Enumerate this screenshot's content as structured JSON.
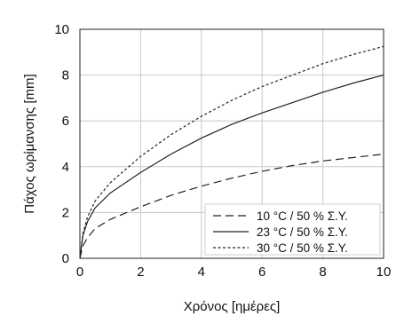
{
  "chart_data": {
    "type": "line",
    "xlabel": "Χρόνος [ημέρες]",
    "ylabel": "Πάχος ωρίμανσης [mm]",
    "xlim": [
      0,
      10
    ],
    "ylim": [
      0,
      10
    ],
    "xticks": [
      "0",
      "2",
      "4",
      "6",
      "8",
      "10"
    ],
    "yticks": [
      "0",
      "2",
      "4",
      "6",
      "8",
      "10"
    ],
    "grid": true,
    "legend_position": "bottom-right",
    "series": [
      {
        "name": "10 °C / 50 % Σ.Υ.",
        "line_style": "dashed",
        "x": [
          0,
          0.1,
          0.25,
          0.5,
          1,
          2,
          3,
          4,
          5,
          6,
          7,
          8,
          9,
          10
        ],
        "y": [
          0,
          0.55,
          0.9,
          1.3,
          1.7,
          2.25,
          2.75,
          3.15,
          3.5,
          3.8,
          4.05,
          4.25,
          4.4,
          4.55
        ]
      },
      {
        "name": "23 °C / 50 % Σ.Υ.",
        "line_style": "solid",
        "x": [
          0,
          0.1,
          0.25,
          0.5,
          1,
          2,
          3,
          4,
          5,
          6,
          7,
          8,
          9,
          10
        ],
        "y": [
          0,
          1.0,
          1.6,
          2.2,
          2.85,
          3.75,
          4.55,
          5.25,
          5.85,
          6.35,
          6.8,
          7.25,
          7.65,
          8.0
        ]
      },
      {
        "name": "30 °C / 50 % Σ.Υ.",
        "line_style": "dotted",
        "x": [
          0,
          0.1,
          0.25,
          0.5,
          1,
          2,
          3,
          4,
          5,
          6,
          7,
          8,
          9,
          10
        ],
        "y": [
          0,
          1.1,
          1.8,
          2.5,
          3.3,
          4.45,
          5.4,
          6.2,
          6.9,
          7.5,
          8.0,
          8.5,
          8.9,
          9.25
        ]
      }
    ]
  }
}
